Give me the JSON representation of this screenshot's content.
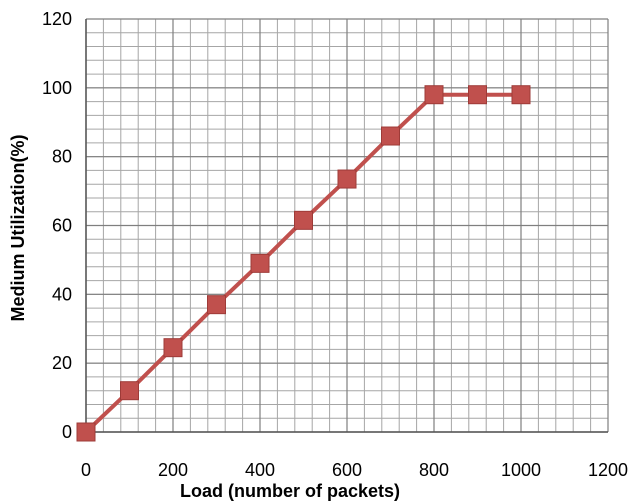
{
  "chart_data": {
    "type": "line",
    "title": "",
    "xlabel": "Load (number of packets)",
    "ylabel": "Medium Utilization(%)",
    "xlim": [
      0,
      1200
    ],
    "ylim": [
      0,
      120
    ],
    "x_ticks": [
      0,
      200,
      400,
      600,
      800,
      1000,
      1200
    ],
    "y_ticks": [
      0,
      20,
      40,
      60,
      80,
      100,
      120
    ],
    "grid": true,
    "minor_grid": true,
    "legend": "none",
    "series": [
      {
        "color": "#C0504D",
        "marker": "square",
        "x": [
          0,
          100,
          200,
          300,
          400,
          500,
          600,
          700,
          800,
          900,
          1000
        ],
        "y": [
          0,
          12,
          24.5,
          37,
          49,
          61.5,
          73.5,
          86,
          98,
          98,
          98
        ]
      }
    ]
  }
}
